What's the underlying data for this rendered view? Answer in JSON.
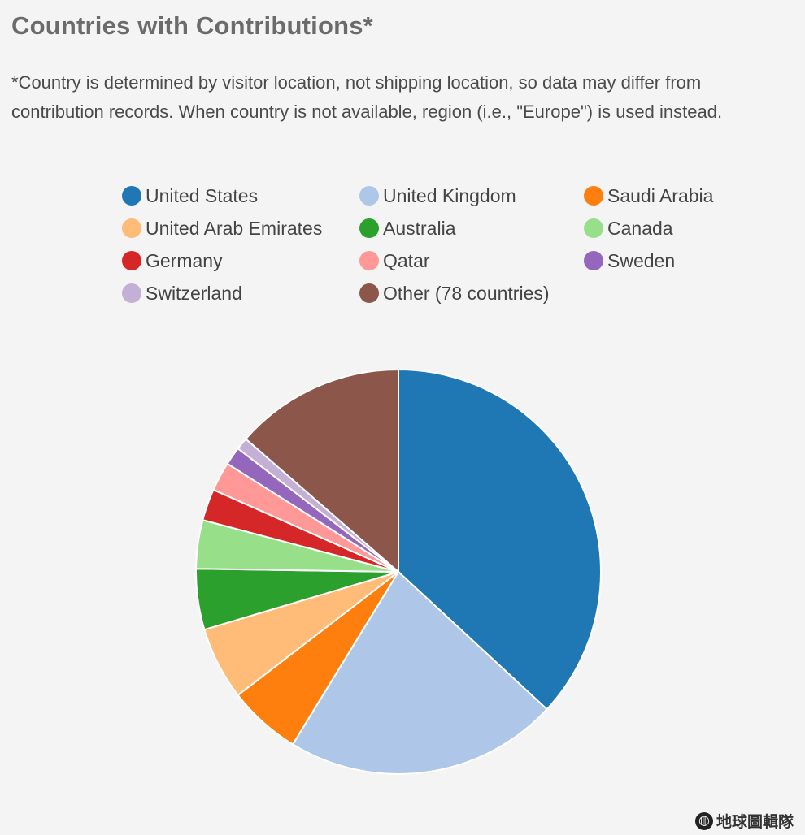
{
  "page": {
    "title": "Countries with Contributions*",
    "note": "*Country is determined by visitor location, not shipping location, so data may differ from contribution records. When country is not available, region (i.e., \"Europe\") is used instead.",
    "watermark": "地球圖輯隊"
  },
  "chart_data": {
    "type": "pie",
    "title": "Countries with Contributions*",
    "legend_position": "top",
    "slices": [
      {
        "label": "United States",
        "value": 38,
        "color": "#1f77b4"
      },
      {
        "label": "United Kingdom",
        "value": 22.5,
        "color": "#aec7e8"
      },
      {
        "label": "Saudi Arabia",
        "value": 6,
        "color": "#ff7f0e"
      },
      {
        "label": "United Arab Emirates",
        "value": 6,
        "color": "#ffbb78"
      },
      {
        "label": "Australia",
        "value": 5,
        "color": "#2ca02c"
      },
      {
        "label": "Canada",
        "value": 4,
        "color": "#98df8a"
      },
      {
        "label": "Germany",
        "value": 2.6,
        "color": "#d62728"
      },
      {
        "label": "Qatar",
        "value": 2.4,
        "color": "#ff9896"
      },
      {
        "label": "Sweden",
        "value": 1.5,
        "color": "#9467bd"
      },
      {
        "label": "Switzerland",
        "value": 1,
        "color": "#c5b0d5"
      },
      {
        "label": "Other (78 countries)",
        "value": 14,
        "color": "#8c564b"
      }
    ],
    "legend_order": [
      "United States",
      "United Kingdom",
      "Saudi Arabia",
      "United Arab Emirates",
      "Australia",
      "Canada",
      "Germany",
      "Qatar",
      "Sweden",
      "Switzerland",
      "Other (78 countries)"
    ]
  }
}
